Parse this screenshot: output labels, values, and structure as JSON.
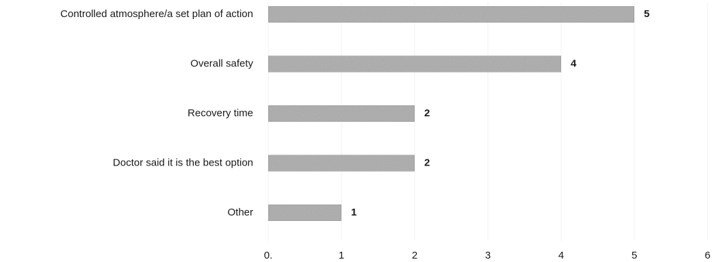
{
  "chart_data": {
    "type": "bar",
    "orientation": "horizontal",
    "categories": [
      "Controlled atmosphere/a set plan of action",
      "Overall safety",
      "Recovery time",
      "Doctor said it is the best option",
      "Other"
    ],
    "values": [
      5,
      4,
      2,
      2,
      1
    ],
    "data_labels": [
      "5",
      "4",
      "2",
      "2",
      "1"
    ],
    "x_ticks": [
      "0.",
      "1",
      "2",
      "3",
      "4",
      "5",
      "6"
    ],
    "xlim": [
      0,
      6
    ],
    "title": "",
    "xlabel": "",
    "ylabel": "",
    "grid": true,
    "legend": "none",
    "colors": {
      "bar_fill": "#b4b4b4",
      "bar_stroke": "#9a9a9a"
    }
  }
}
